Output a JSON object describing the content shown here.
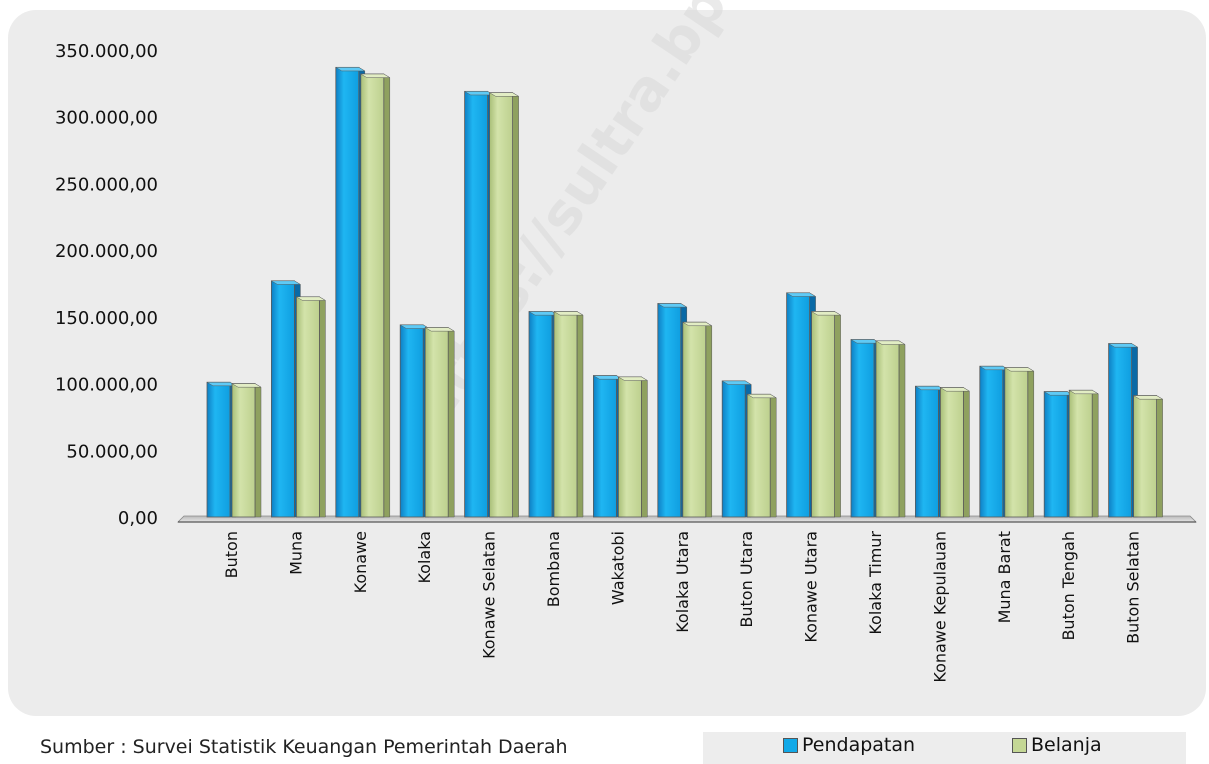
{
  "source": "Sumber : Survei Statistik Keuangan Pemerintah Daerah",
  "watermark": "https://sultra.bps.go.id",
  "colors": {
    "pendapatan": "#12a9e8",
    "belanja": "#c4d795",
    "panel": "#ececec"
  },
  "chart_data": {
    "type": "bar",
    "categories": [
      "Buton",
      "Muna",
      "Konawe",
      "Kolaka",
      "Konawe Selatan",
      "Bombana",
      "Wakatobi",
      "Kolaka Utara",
      "Buton Utara",
      "Konawe Utara",
      "Kolaka Timur",
      "Konawe Kepulauan",
      "Muna Barat",
      "Buton Tengah",
      "Buton Selatan"
    ],
    "series": [
      {
        "name": "Pendapatan",
        "values": [
          101000,
          177000,
          337000,
          144000,
          319000,
          154000,
          106000,
          160000,
          102000,
          168000,
          133000,
          98000,
          113000,
          94000,
          130000
        ]
      },
      {
        "name": "Belanja",
        "values": [
          100000,
          165000,
          332000,
          142000,
          318000,
          154000,
          105000,
          146000,
          92000,
          154000,
          132000,
          97000,
          112000,
          95000,
          91000
        ]
      }
    ],
    "yticks": [
      "0,00",
      "50.000,00",
      "100.000,00",
      "150.000,00",
      "200.000,00",
      "250.000,00",
      "300.000,00",
      "350.000,00"
    ],
    "ylim": [
      0,
      350000
    ],
    "legend_position": "bottom-right",
    "title": "",
    "xlabel": "",
    "ylabel": "",
    "grid": false
  }
}
